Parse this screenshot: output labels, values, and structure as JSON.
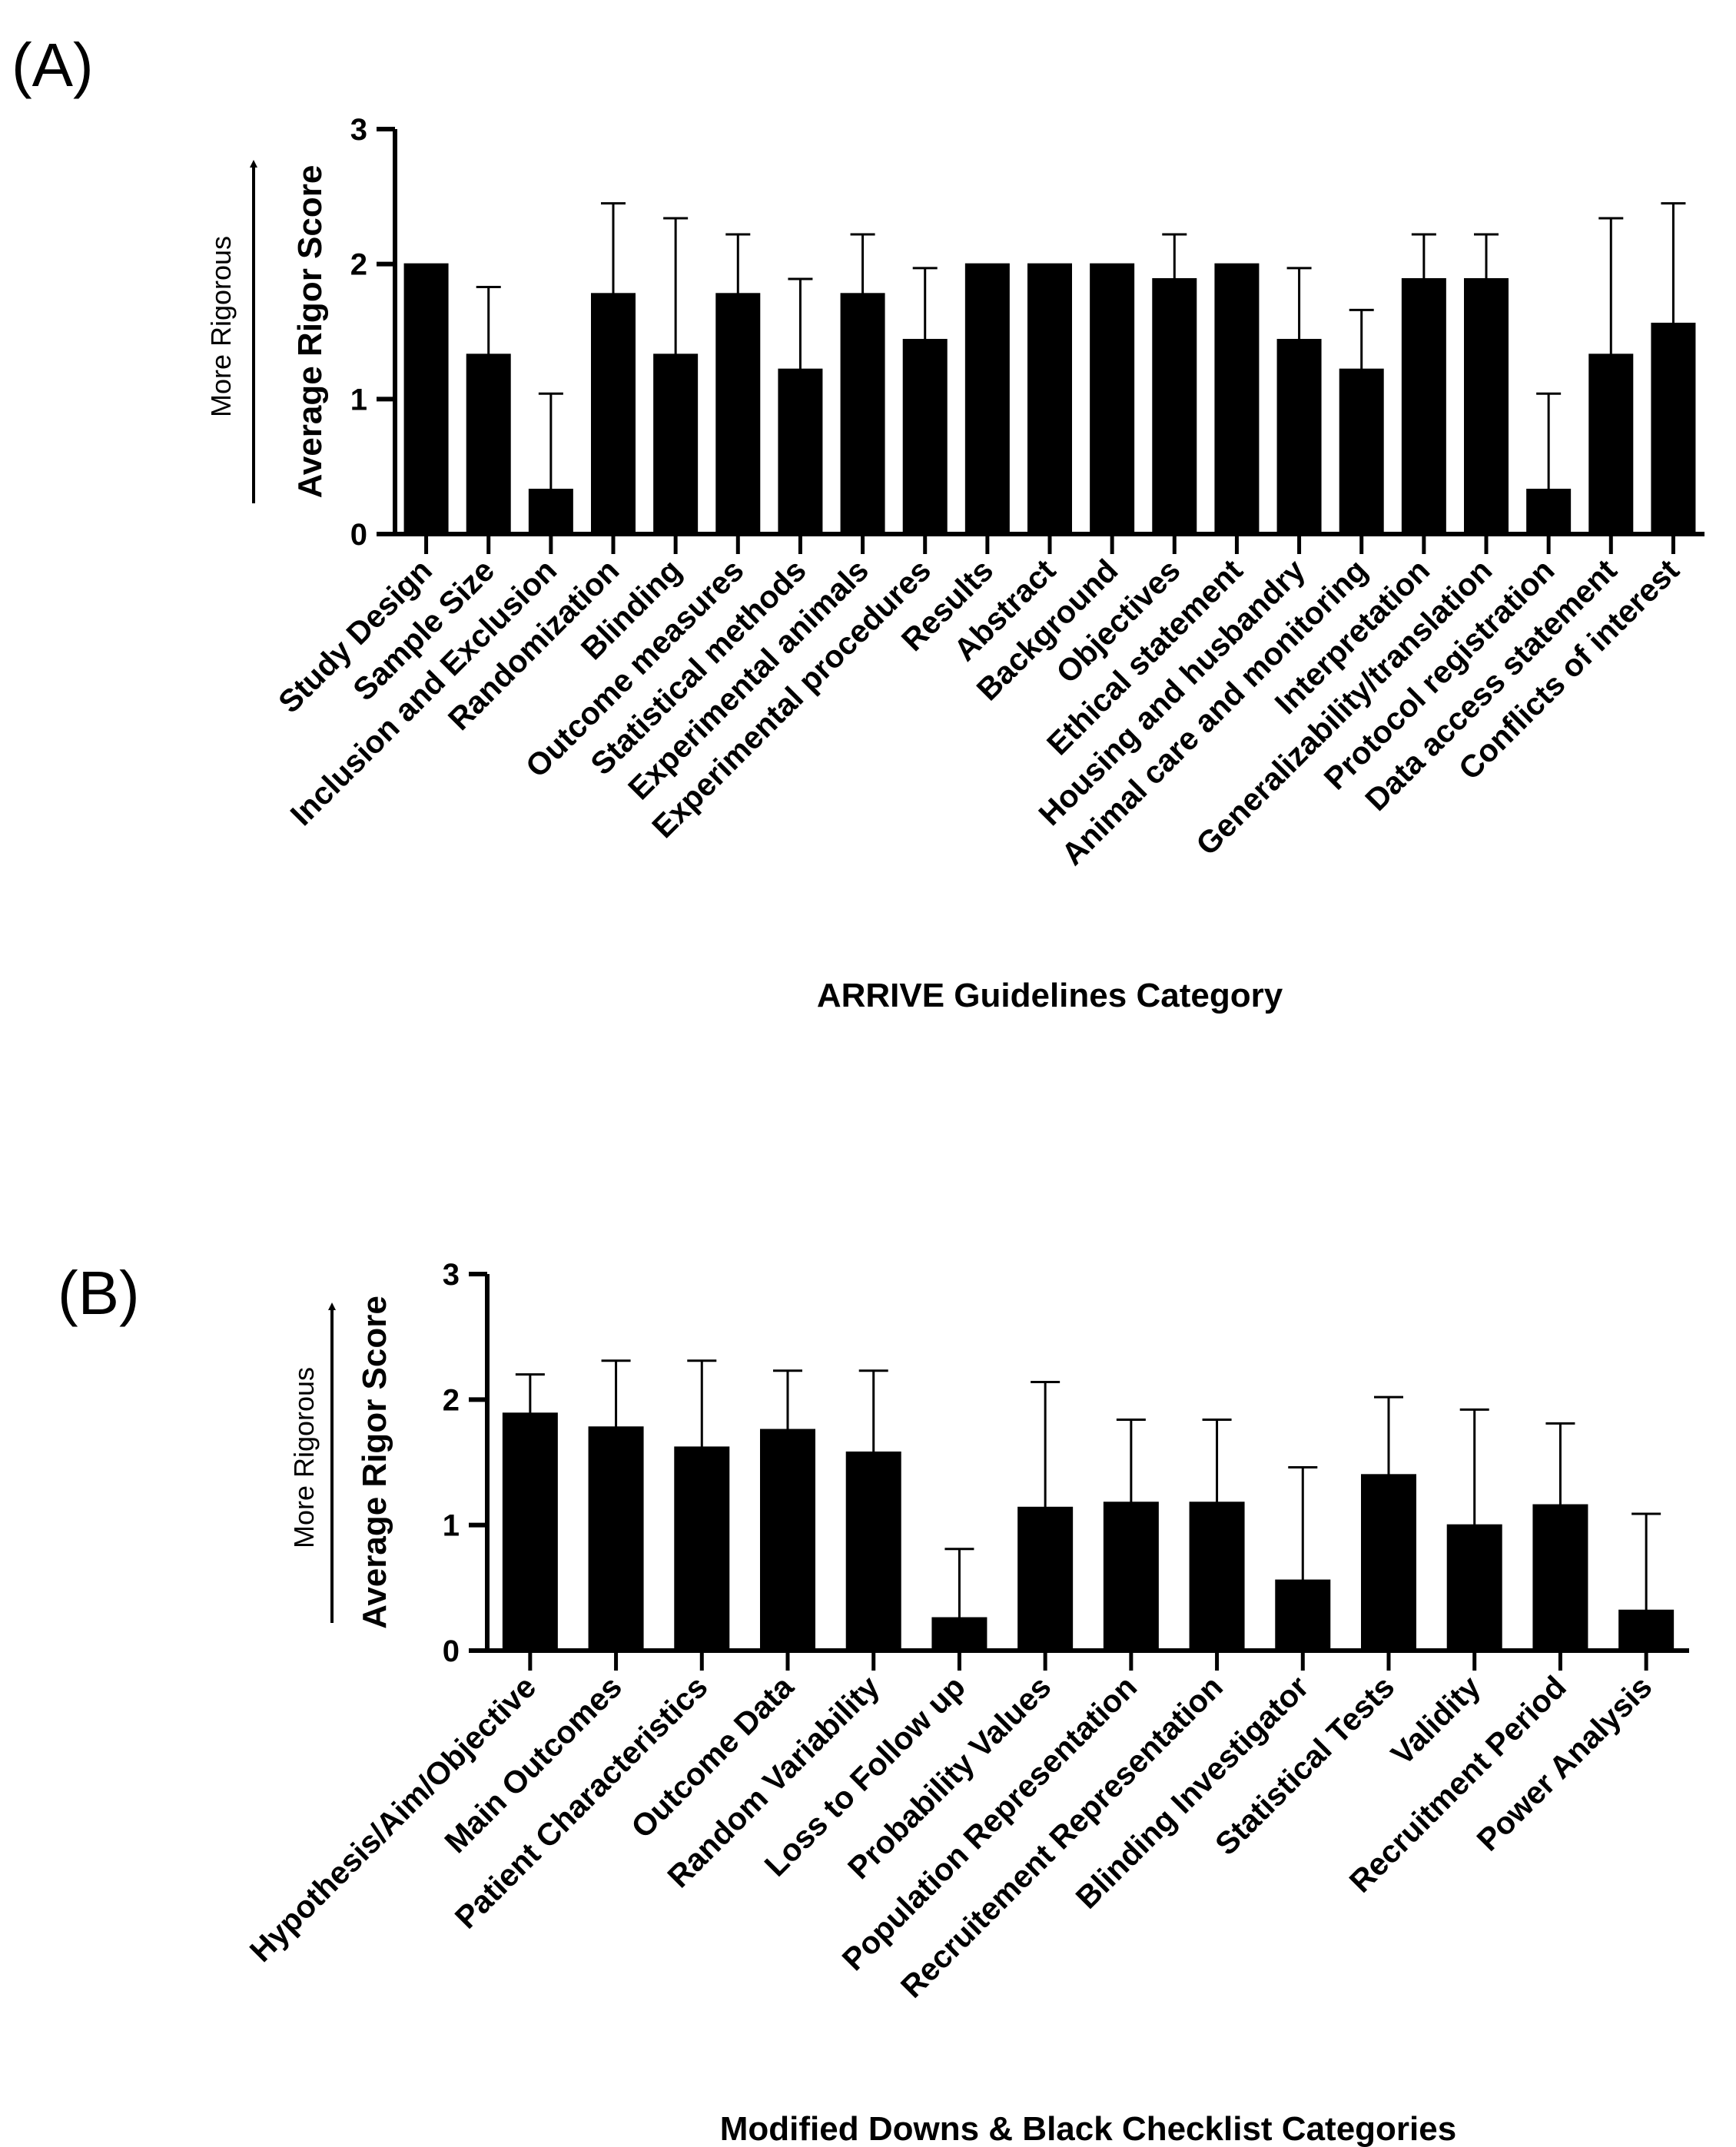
{
  "chart_data": [
    {
      "panel": "(A)",
      "type": "bar",
      "ylabel": "Average Rigor Score",
      "arrow_label": "More Rigorous",
      "xlabel": "ARRIVE Guidelines Category",
      "ylim": [
        0,
        3
      ],
      "yticks": [
        "0",
        "1",
        "2",
        "3"
      ],
      "categories": [
        "Study Design",
        "Sample Size",
        "Inclusion and Exclusion",
        "Randomization",
        "Blinding",
        "Outcome measures",
        "Statistical methods",
        "Experimental animals",
        "Experimental procedures",
        "Results",
        "Abstract",
        "Background",
        "Objectives",
        "Ethical statement",
        "Housing and husbandry",
        "Animal care and monitoring",
        "Interpretation",
        "Generalizability/translation",
        "Protocol registration",
        "Data access statement",
        "Conflicts of interest"
      ],
      "values": [
        2.0,
        1.33,
        0.33,
        1.78,
        1.33,
        1.78,
        1.22,
        1.78,
        1.44,
        2.0,
        2.0,
        2.0,
        1.89,
        2.0,
        1.44,
        1.22,
        1.89,
        1.89,
        0.33,
        1.33,
        1.56
      ],
      "error_upper": [
        2.0,
        1.83,
        1.04,
        2.45,
        2.34,
        2.22,
        1.89,
        2.22,
        1.97,
        2.0,
        2.0,
        2.0,
        2.22,
        2.0,
        1.97,
        1.66,
        2.22,
        2.22,
        1.04,
        2.34,
        2.45
      ]
    },
    {
      "panel": "(B)",
      "type": "bar",
      "ylabel": "Average Rigor Score",
      "arrow_label": "More Rigorous",
      "xlabel": "Modified Downs & Black Checklist Categories",
      "ylim": [
        0,
        3
      ],
      "yticks": [
        "0",
        "1",
        "2",
        "3"
      ],
      "categories": [
        "Hypothesis/Aim/Objective",
        "Main Outcomes",
        "Patient Characteristics",
        "Outcome Data",
        "Random Variability",
        "Loss to Follow up",
        "Probability Values",
        "Population Representation",
        "Recruitement Representation",
        "Blinding Investigator",
        "Statistical Tests",
        "Validity",
        "Recruitment Period",
        "Power Analysis"
      ],
      "values": [
        1.89,
        1.78,
        1.62,
        1.76,
        1.58,
        0.26,
        1.14,
        1.18,
        1.18,
        0.56,
        1.4,
        1.0,
        1.16,
        0.32
      ],
      "error_upper": [
        2.2,
        2.31,
        2.31,
        2.23,
        2.23,
        0.81,
        2.14,
        1.84,
        1.84,
        1.46,
        2.02,
        1.92,
        1.81,
        1.09
      ]
    }
  ]
}
